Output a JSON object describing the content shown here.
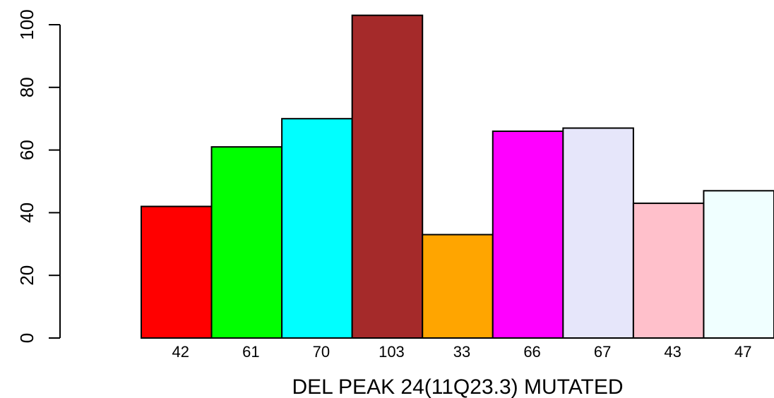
{
  "chart_data": {
    "type": "bar",
    "title": "",
    "xlabel": "DEL PEAK 24(11Q23.3) MUTATED",
    "ylabel": "",
    "ylim": [
      0,
      100
    ],
    "yticks": [
      0,
      20,
      40,
      60,
      80,
      100
    ],
    "categories": [
      "42",
      "61",
      "70",
      "103",
      "33",
      "66",
      "67",
      "43",
      "47"
    ],
    "values": [
      42,
      61,
      70,
      103,
      33,
      66,
      67,
      43,
      47
    ],
    "colors": [
      "#ff0000",
      "#00ff00",
      "#00ffff",
      "#a52a2a",
      "#ffa500",
      "#ff00ff",
      "#e6e6fa",
      "#ffc0cb",
      "#f0ffff"
    ],
    "grid": false,
    "legend": "none"
  }
}
